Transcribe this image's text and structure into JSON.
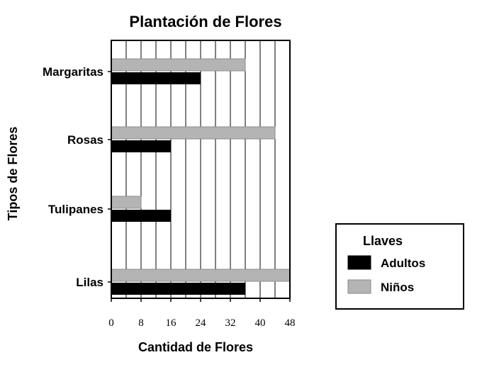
{
  "chart_data": {
    "type": "bar",
    "orientation": "horizontal",
    "title": "Plantación de Flores",
    "xlabel": "Cantidad de Flores",
    "ylabel": "Tipos de Flores",
    "categories": [
      "Margaritas",
      "Rosas",
      "Tulipanes",
      "Lilas"
    ],
    "series": [
      {
        "name": "Niños",
        "color": "#b4b4b4",
        "values": [
          36,
          44,
          8,
          48
        ]
      },
      {
        "name": "Adultos",
        "color": "#000000",
        "values": [
          24,
          16,
          16,
          36
        ]
      }
    ],
    "xlim": [
      0,
      48
    ],
    "xticks": [
      "0",
      "8",
      "16",
      "24",
      "32",
      "40",
      "48"
    ],
    "grid": "vertical lines every 4",
    "legend": {
      "title": "Llaves",
      "position": "right",
      "entries": [
        {
          "label": "Adultos",
          "color": "#000000"
        },
        {
          "label": "Niños",
          "color": "#b4b4b4"
        }
      ]
    }
  }
}
